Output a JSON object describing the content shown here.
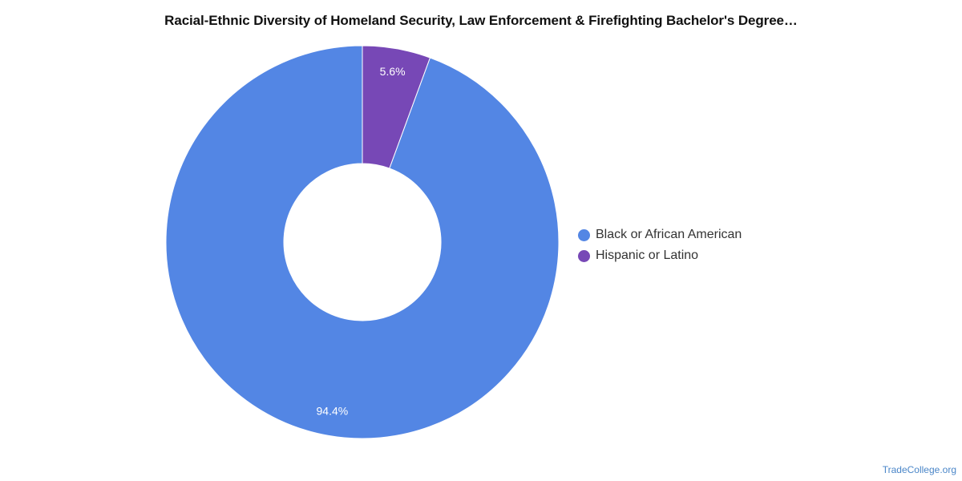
{
  "colors": {
    "black_or_african_american": "#5386e4",
    "hispanic_or_latino": "#7748b6",
    "watermark": "#4a86c8"
  },
  "chart_data": {
    "type": "pie",
    "variant": "donut",
    "title": "Racial-Ethnic Diversity of Homeland Security, Law Enforcement & Firefighting Bachelor's Degree…",
    "categories": [
      "Black or African American",
      "Hispanic or Latino"
    ],
    "values": [
      94.4,
      5.6
    ],
    "data_labels": [
      "94.4%",
      "5.6%"
    ],
    "colors": [
      "#5386e4",
      "#7748b6"
    ],
    "legend": {
      "position": "right",
      "entries": [
        "Black or African American",
        "Hispanic or Latino"
      ]
    }
  },
  "watermark": "TradeCollege.org"
}
